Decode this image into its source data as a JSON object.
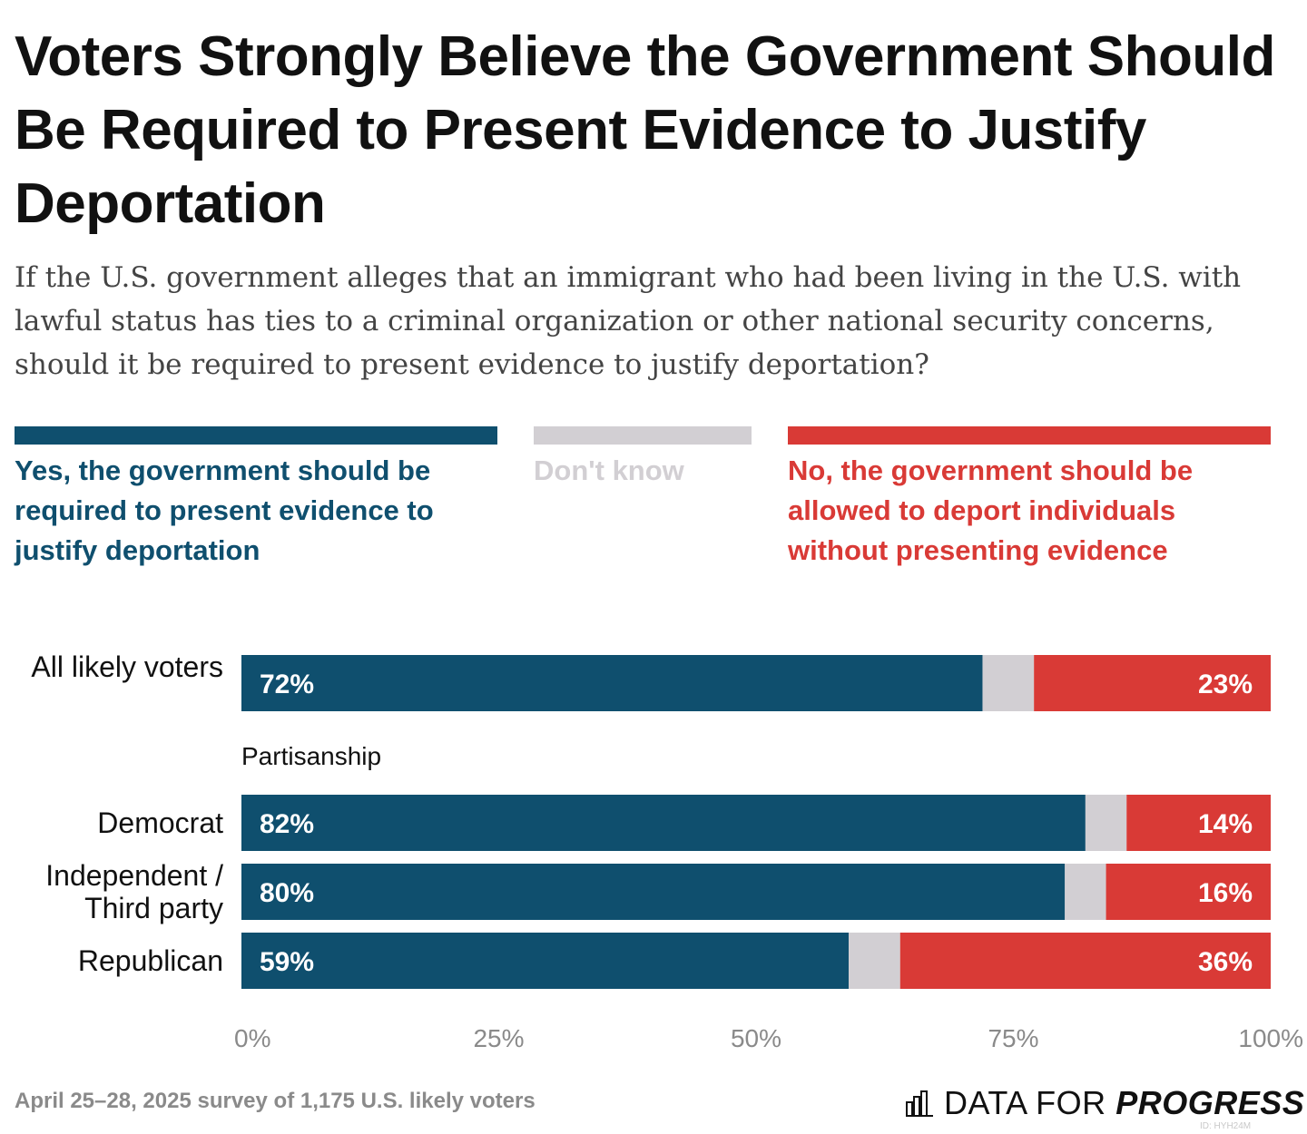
{
  "title": "Voters Strongly Believe the Government Should Be Required to Present Evidence to Justify Deportation",
  "subtitle": "If the U.S. government alleges that an immigrant who had been living in the U.S. with lawful status has ties to a criminal organization or other national security concerns, should it be required to present evidence to justify deportation?",
  "legend": [
    {
      "label": "Yes, the government should be required to present evidence to justify deportation",
      "color": "#0f4f6e"
    },
    {
      "label": "Don't know",
      "color": "#d2cfd3"
    },
    {
      "label": "No, the government should be allowed to deport individuals without presenting evidence",
      "color": "#d93a36"
    }
  ],
  "group_label": "Partisanship",
  "footer": {
    "note": "April 25–28, 2025 survey of 1,175 U.S. likely voters",
    "brand_prefix": "DATA FOR",
    "brand_emphasis": "PROGRESS",
    "watermark": "ID: HYH24M"
  },
  "chart_data": {
    "type": "bar",
    "orientation": "horizontal",
    "stacked": true,
    "categories": [
      "All likely voters",
      "Democrat",
      "Independent / Third party",
      "Republican"
    ],
    "series": [
      {
        "name": "Yes, the government should be required to present evidence to justify deportation",
        "values": [
          72,
          82,
          80,
          59
        ],
        "labels": [
          "72%",
          "82%",
          "80%",
          "59%"
        ],
        "color": "#0f4f6e"
      },
      {
        "name": "Don't know",
        "values": [
          5,
          4,
          4,
          5
        ],
        "color": "#d2cfd3"
      },
      {
        "name": "No, the government should be allowed to deport individuals without presenting evidence",
        "values": [
          23,
          14,
          16,
          36
        ],
        "labels": [
          "23%",
          "14%",
          "16%",
          "36%"
        ],
        "color": "#d93a36"
      }
    ],
    "xlim": [
      0,
      100
    ],
    "xticks": [
      "0%",
      "25%",
      "50%",
      "75%",
      "100%"
    ],
    "grid": false
  }
}
